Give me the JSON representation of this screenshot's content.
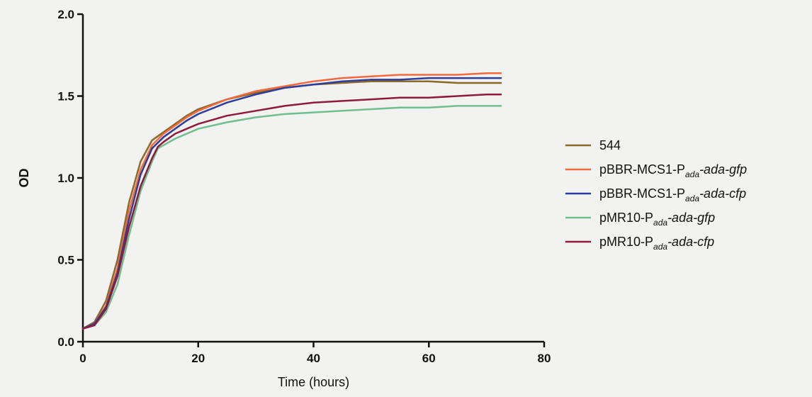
{
  "chart_data": {
    "type": "line",
    "title": "",
    "xlabel": "Time (hours)",
    "ylabel": "OD",
    "xlim": [
      0,
      80
    ],
    "ylim": [
      0,
      2.0
    ],
    "x_ticks": [
      "0",
      "20",
      "40",
      "60",
      "80"
    ],
    "y_ticks": [
      "0.0",
      "0.5",
      "1.0",
      "1.5",
      "2.0"
    ],
    "grid": false,
    "legend_position": "right",
    "series": [
      {
        "name": "544",
        "name_parts": [
          {
            "text": "544",
            "style": "normal"
          }
        ],
        "color": "#8b6a2a",
        "points": [
          [
            0,
            0.08
          ],
          [
            2,
            0.12
          ],
          [
            4,
            0.25
          ],
          [
            6,
            0.5
          ],
          [
            8,
            0.85
          ],
          [
            10,
            1.1
          ],
          [
            12,
            1.23
          ],
          [
            14,
            1.28
          ],
          [
            16,
            1.33
          ],
          [
            18,
            1.38
          ],
          [
            20,
            1.42
          ],
          [
            25,
            1.48
          ],
          [
            30,
            1.52
          ],
          [
            35,
            1.55
          ],
          [
            40,
            1.57
          ],
          [
            45,
            1.58
          ],
          [
            50,
            1.59
          ],
          [
            55,
            1.59
          ],
          [
            60,
            1.59
          ],
          [
            65,
            1.58
          ],
          [
            70,
            1.58
          ],
          [
            72.5,
            1.58
          ]
        ]
      },
      {
        "name": "pBBR-MCS1-Pada-ada-gfp",
        "name_parts": [
          {
            "text": "pBBR-MCS1-P",
            "style": "normal"
          },
          {
            "text": "ada",
            "style": "sub"
          },
          {
            "text": "-ada-gfp",
            "style": "italic"
          }
        ],
        "color": "#f26a3d",
        "points": [
          [
            0,
            0.08
          ],
          [
            2,
            0.11
          ],
          [
            4,
            0.22
          ],
          [
            6,
            0.45
          ],
          [
            8,
            0.8
          ],
          [
            10,
            1.05
          ],
          [
            12,
            1.2
          ],
          [
            14,
            1.27
          ],
          [
            16,
            1.32
          ],
          [
            18,
            1.37
          ],
          [
            20,
            1.41
          ],
          [
            25,
            1.48
          ],
          [
            30,
            1.53
          ],
          [
            35,
            1.56
          ],
          [
            40,
            1.59
          ],
          [
            45,
            1.61
          ],
          [
            50,
            1.62
          ],
          [
            55,
            1.63
          ],
          [
            60,
            1.63
          ],
          [
            65,
            1.63
          ],
          [
            70,
            1.64
          ],
          [
            72.5,
            1.64
          ]
        ]
      },
      {
        "name": "pBBR-MCS1-Pada-ada-cfp",
        "name_parts": [
          {
            "text": "pBBR-MCS1-P",
            "style": "normal"
          },
          {
            "text": "ada",
            "style": "sub"
          },
          {
            "text": "-ada-cfp",
            "style": "italic"
          }
        ],
        "color": "#2c3e9c",
        "points": [
          [
            0,
            0.08
          ],
          [
            2,
            0.11
          ],
          [
            4,
            0.21
          ],
          [
            6,
            0.42
          ],
          [
            8,
            0.75
          ],
          [
            10,
            1.02
          ],
          [
            12,
            1.18
          ],
          [
            14,
            1.25
          ],
          [
            16,
            1.3
          ],
          [
            18,
            1.35
          ],
          [
            20,
            1.39
          ],
          [
            25,
            1.46
          ],
          [
            30,
            1.51
          ],
          [
            35,
            1.55
          ],
          [
            40,
            1.57
          ],
          [
            45,
            1.59
          ],
          [
            50,
            1.6
          ],
          [
            55,
            1.6
          ],
          [
            60,
            1.61
          ],
          [
            65,
            1.61
          ],
          [
            70,
            1.61
          ],
          [
            72.5,
            1.61
          ]
        ]
      },
      {
        "name": "pMR10-Pada-ada-gfp",
        "name_parts": [
          {
            "text": "pMR10-P",
            "style": "normal"
          },
          {
            "text": "ada",
            "style": "sub"
          },
          {
            "text": "-ada-gfp",
            "style": "italic"
          }
        ],
        "color": "#6fbf8e",
        "points": [
          [
            0,
            0.08
          ],
          [
            2,
            0.1
          ],
          [
            4,
            0.18
          ],
          [
            6,
            0.35
          ],
          [
            8,
            0.65
          ],
          [
            10,
            0.92
          ],
          [
            12,
            1.1
          ],
          [
            13,
            1.18
          ],
          [
            14,
            1.2
          ],
          [
            16,
            1.24
          ],
          [
            18,
            1.27
          ],
          [
            20,
            1.3
          ],
          [
            25,
            1.34
          ],
          [
            30,
            1.37
          ],
          [
            35,
            1.39
          ],
          [
            40,
            1.4
          ],
          [
            45,
            1.41
          ],
          [
            50,
            1.42
          ],
          [
            55,
            1.43
          ],
          [
            60,
            1.43
          ],
          [
            65,
            1.44
          ],
          [
            70,
            1.44
          ],
          [
            72.5,
            1.44
          ]
        ]
      },
      {
        "name": "pMR10-Pada-ada-cfp",
        "name_parts": [
          {
            "text": "pMR10-P",
            "style": "normal"
          },
          {
            "text": "ada",
            "style": "sub"
          },
          {
            "text": "-ada-cfp",
            "style": "italic"
          }
        ],
        "color": "#8c1b3d",
        "points": [
          [
            0,
            0.08
          ],
          [
            2,
            0.1
          ],
          [
            4,
            0.2
          ],
          [
            6,
            0.4
          ],
          [
            8,
            0.7
          ],
          [
            10,
            0.95
          ],
          [
            12,
            1.12
          ],
          [
            13,
            1.19
          ],
          [
            14,
            1.22
          ],
          [
            16,
            1.27
          ],
          [
            18,
            1.3
          ],
          [
            20,
            1.33
          ],
          [
            25,
            1.38
          ],
          [
            30,
            1.41
          ],
          [
            35,
            1.44
          ],
          [
            40,
            1.46
          ],
          [
            45,
            1.47
          ],
          [
            50,
            1.48
          ],
          [
            55,
            1.49
          ],
          [
            60,
            1.49
          ],
          [
            65,
            1.5
          ],
          [
            70,
            1.51
          ],
          [
            72.5,
            1.51
          ]
        ]
      }
    ]
  }
}
